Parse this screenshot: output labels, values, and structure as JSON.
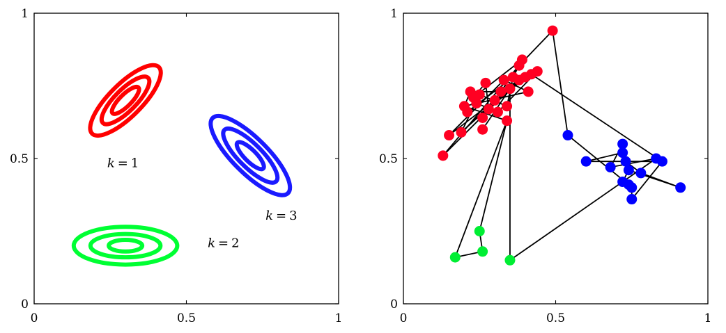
{
  "chart_data": [
    {
      "type": "contour",
      "xlim": [
        0,
        1
      ],
      "ylim": [
        0,
        1
      ],
      "xticks": [
        "0",
        "0.5",
        "1"
      ],
      "yticks": [
        "0",
        "0.5",
        "1"
      ],
      "grid": false,
      "components": [
        {
          "label": "k = 1",
          "k_symbol": "k",
          "k_value": "1",
          "color": "#ff0000",
          "mean": [
            0.3,
            0.7
          ],
          "semi_major": [
            0.155,
            0.105,
            0.06
          ],
          "semi_minor": [
            0.056,
            0.037,
            0.02
          ],
          "angle_deg": 45,
          "label_pos": [
            0.24,
            0.47
          ]
        },
        {
          "label": "k = 2",
          "k_symbol": "k",
          "k_value": "2",
          "color": "#00ff33",
          "mean": [
            0.3,
            0.2
          ],
          "semi_major": [
            0.17,
            0.115,
            0.055
          ],
          "semi_minor": [
            0.065,
            0.04,
            0.02
          ],
          "angle_deg": 0,
          "label_pos": [
            0.57,
            0.195
          ]
        },
        {
          "label": "k = 3",
          "k_symbol": "k",
          "k_value": "3",
          "color": "#1a1aff",
          "mean": [
            0.71,
            0.51
          ],
          "semi_major": [
            0.175,
            0.12,
            0.06
          ],
          "semi_minor": [
            0.06,
            0.04,
            0.02
          ],
          "angle_deg": -45,
          "label_pos": [
            0.76,
            0.29
          ]
        }
      ]
    },
    {
      "type": "scatter",
      "xlim": [
        0,
        1
      ],
      "ylim": [
        0,
        1
      ],
      "xticks": [
        "0",
        "0.5",
        "1"
      ],
      "yticks": [
        "0",
        "0.5",
        "1"
      ],
      "grid": false,
      "colors": {
        "red": "#ff0022",
        "green": "#00ee33",
        "blue": "#0000ff"
      },
      "points": [
        {
          "x": 0.13,
          "y": 0.51,
          "c": "red"
        },
        {
          "x": 0.15,
          "y": 0.58,
          "c": "red"
        },
        {
          "x": 0.19,
          "y": 0.59,
          "c": "red"
        },
        {
          "x": 0.2,
          "y": 0.68,
          "c": "red"
        },
        {
          "x": 0.21,
          "y": 0.66,
          "c": "red"
        },
        {
          "x": 0.22,
          "y": 0.73,
          "c": "red"
        },
        {
          "x": 0.23,
          "y": 0.71,
          "c": "red"
        },
        {
          "x": 0.24,
          "y": 0.69,
          "c": "red"
        },
        {
          "x": 0.25,
          "y": 0.72,
          "c": "red"
        },
        {
          "x": 0.26,
          "y": 0.64,
          "c": "red"
        },
        {
          "x": 0.27,
          "y": 0.76,
          "c": "red"
        },
        {
          "x": 0.26,
          "y": 0.6,
          "c": "red"
        },
        {
          "x": 0.28,
          "y": 0.67,
          "c": "red"
        },
        {
          "x": 0.3,
          "y": 0.7,
          "c": "red"
        },
        {
          "x": 0.31,
          "y": 0.66,
          "c": "red"
        },
        {
          "x": 0.32,
          "y": 0.73,
          "c": "red"
        },
        {
          "x": 0.33,
          "y": 0.77,
          "c": "red"
        },
        {
          "x": 0.34,
          "y": 0.68,
          "c": "red"
        },
        {
          "x": 0.34,
          "y": 0.63,
          "c": "red"
        },
        {
          "x": 0.35,
          "y": 0.74,
          "c": "red"
        },
        {
          "x": 0.36,
          "y": 0.78,
          "c": "red"
        },
        {
          "x": 0.38,
          "y": 0.77,
          "c": "red"
        },
        {
          "x": 0.38,
          "y": 0.82,
          "c": "red"
        },
        {
          "x": 0.39,
          "y": 0.84,
          "c": "red"
        },
        {
          "x": 0.4,
          "y": 0.78,
          "c": "red"
        },
        {
          "x": 0.41,
          "y": 0.73,
          "c": "red"
        },
        {
          "x": 0.42,
          "y": 0.79,
          "c": "red"
        },
        {
          "x": 0.44,
          "y": 0.8,
          "c": "red"
        },
        {
          "x": 0.49,
          "y": 0.94,
          "c": "red"
        },
        {
          "x": 0.54,
          "y": 0.58,
          "c": "blue"
        },
        {
          "x": 0.6,
          "y": 0.49,
          "c": "blue"
        },
        {
          "x": 0.68,
          "y": 0.47,
          "c": "blue"
        },
        {
          "x": 0.72,
          "y": 0.55,
          "c": "blue"
        },
        {
          "x": 0.72,
          "y": 0.52,
          "c": "blue"
        },
        {
          "x": 0.73,
          "y": 0.49,
          "c": "blue"
        },
        {
          "x": 0.74,
          "y": 0.46,
          "c": "blue"
        },
        {
          "x": 0.72,
          "y": 0.42,
          "c": "blue"
        },
        {
          "x": 0.74,
          "y": 0.41,
          "c": "blue"
        },
        {
          "x": 0.75,
          "y": 0.4,
          "c": "blue"
        },
        {
          "x": 0.78,
          "y": 0.45,
          "c": "blue"
        },
        {
          "x": 0.83,
          "y": 0.5,
          "c": "blue"
        },
        {
          "x": 0.85,
          "y": 0.49,
          "c": "blue"
        },
        {
          "x": 0.75,
          "y": 0.36,
          "c": "blue"
        },
        {
          "x": 0.91,
          "y": 0.4,
          "c": "blue"
        },
        {
          "x": 0.25,
          "y": 0.25,
          "c": "green"
        },
        {
          "x": 0.26,
          "y": 0.18,
          "c": "green"
        },
        {
          "x": 0.17,
          "y": 0.16,
          "c": "green"
        },
        {
          "x": 0.35,
          "y": 0.15,
          "c": "green"
        }
      ],
      "edges": [
        [
          0,
          19
        ],
        [
          0,
          22
        ],
        [
          1,
          16
        ],
        [
          1,
          24
        ],
        [
          2,
          13
        ],
        [
          2,
          21
        ],
        [
          3,
          18
        ],
        [
          3,
          25
        ],
        [
          4,
          20
        ],
        [
          5,
          15
        ],
        [
          6,
          23
        ],
        [
          7,
          14
        ],
        [
          8,
          17
        ],
        [
          9,
          22
        ],
        [
          10,
          12
        ],
        [
          11,
          19
        ],
        [
          12,
          24
        ],
        [
          13,
          26
        ],
        [
          14,
          27
        ],
        [
          15,
          21
        ],
        [
          16,
          25
        ],
        [
          17,
          20
        ],
        [
          22,
          28
        ],
        [
          28,
          29
        ],
        [
          18,
          44
        ],
        [
          44,
          45
        ],
        [
          45,
          46
        ],
        [
          46,
          18
        ],
        [
          19,
          47
        ],
        [
          47,
          40
        ],
        [
          40,
          31
        ],
        [
          31,
          32
        ],
        [
          32,
          33
        ],
        [
          33,
          34
        ],
        [
          34,
          39
        ],
        [
          39,
          43
        ],
        [
          43,
          35
        ],
        [
          35,
          36
        ],
        [
          36,
          37
        ],
        [
          37,
          38
        ],
        [
          38,
          42
        ],
        [
          42,
          41
        ],
        [
          41,
          30
        ],
        [
          30,
          33
        ],
        [
          29,
          37
        ],
        [
          26,
          41
        ],
        [
          23,
          20
        ],
        [
          24,
          21
        ],
        [
          10,
          6
        ],
        [
          3,
          5
        ],
        [
          8,
          2
        ]
      ]
    }
  ]
}
